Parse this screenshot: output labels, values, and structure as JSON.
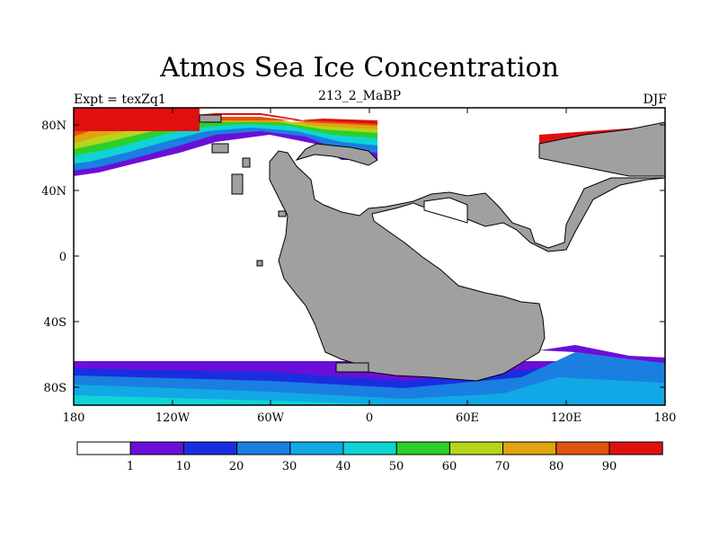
{
  "title": "Atmos Sea Ice Concentration",
  "subtitle_left": "Expt = texZq1",
  "subtitle_center": "213_2_MaBP",
  "subtitle_right": "DJF",
  "x_ticks": [
    "180",
    "120W",
    "60W",
    "0",
    "60E",
    "120E",
    "180"
  ],
  "y_ticks": [
    "80N",
    "40N",
    "0",
    "40S",
    "80S"
  ],
  "colorbar": {
    "labels": [
      "1",
      "10",
      "20",
      "30",
      "40",
      "50",
      "60",
      "70",
      "80",
      "90"
    ],
    "colors": [
      "#ffffff",
      "#6a0fd8",
      "#1a2ee0",
      "#1a7fe0",
      "#12a8e6",
      "#10d4d4",
      "#2ccf2c",
      "#b8d41a",
      "#e0a410",
      "#e05410",
      "#e01010"
    ]
  },
  "colors": {
    "land": "#a0a0a0",
    "ocean": "#ffffff"
  }
}
